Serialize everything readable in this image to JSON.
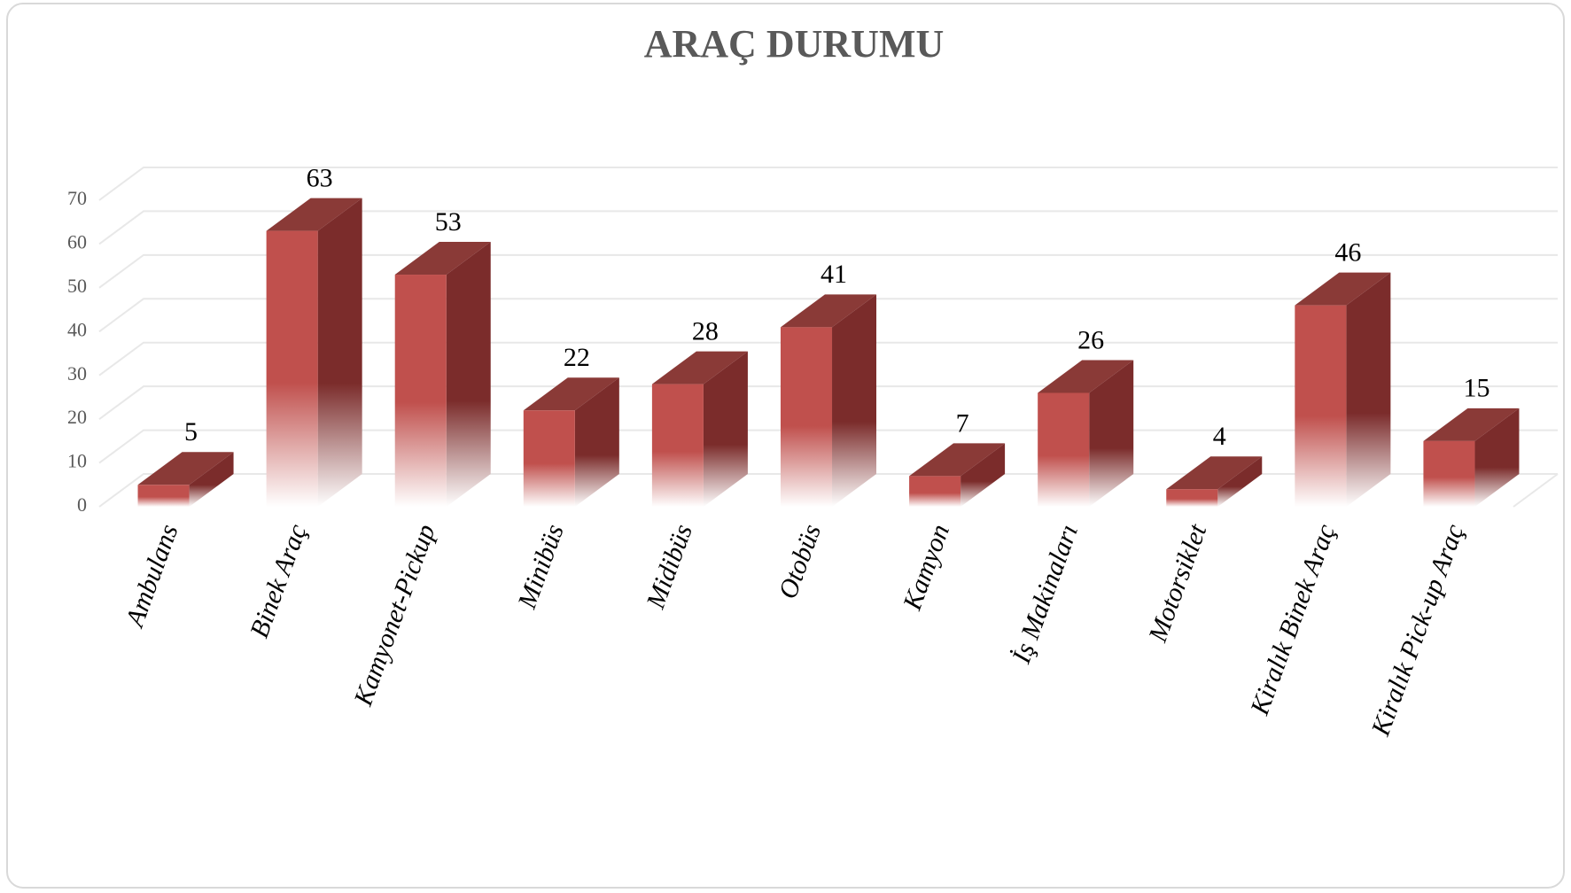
{
  "chart_data": {
    "type": "bar",
    "title": "ARAÇ DURUMU",
    "categories": [
      "Ambulans",
      "Binek Araç",
      "Kamyonet-Pickup",
      "Minibüs",
      "Midibüs",
      "Otobüs",
      "Kamyon",
      "İş Makinaları",
      "Motorsiklet",
      "Kiralık Binek Araç",
      "Kiralık Pick-up Araç"
    ],
    "values": [
      5,
      63,
      53,
      22,
      28,
      41,
      7,
      26,
      4,
      46,
      15
    ],
    "color": "#c0504d",
    "ylim": [
      0,
      70
    ],
    "yticks": [
      0,
      10,
      20,
      30,
      40,
      50,
      60,
      70
    ],
    "grid": true
  }
}
